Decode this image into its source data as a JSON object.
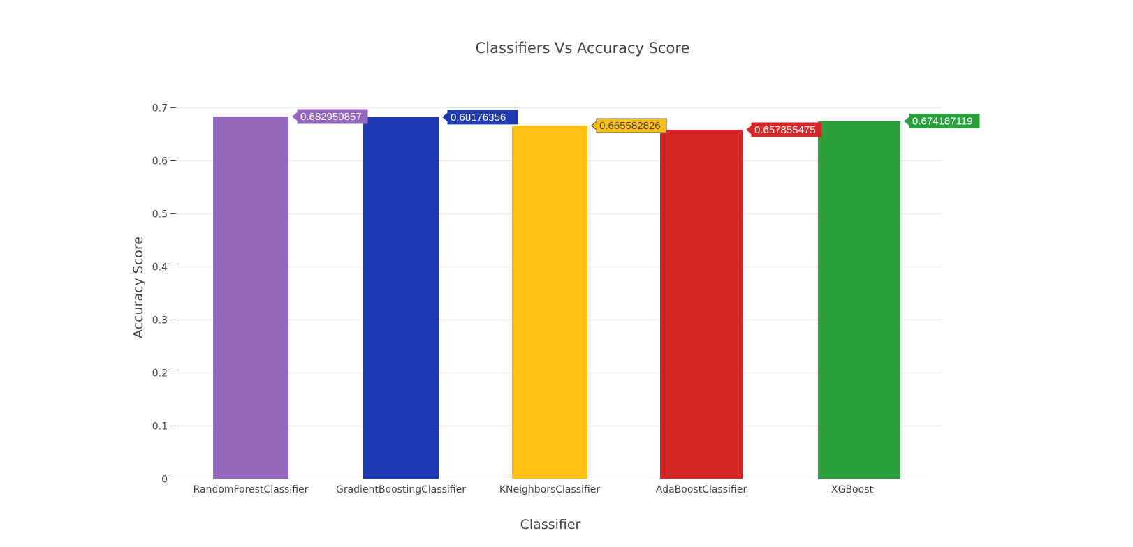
{
  "chart_data": {
    "type": "bar",
    "title": "Classifiers Vs Accuracy Score",
    "xlabel": "Classifier",
    "ylabel": "Accuracy Score",
    "categories": [
      "RandomForestClassifier",
      "GradientBoostingClassifier",
      "KNeighborsClassifier",
      "AdaBoostClassifier",
      "XGBoost"
    ],
    "values": [
      0.682950857,
      0.68176356,
      0.665582826,
      0.657855475,
      0.674187119
    ],
    "data_labels": [
      "0.682950857",
      "0.68176356",
      "0.665582826",
      "0.657855475",
      "0.674187119"
    ],
    "colors": [
      "#9467bd",
      "#1f3bb3",
      "#fdc010",
      "#d62728",
      "#2ca03c"
    ],
    "label_text_colors": [
      "#ffffff",
      "#ffffff",
      "#444444",
      "#ffffff",
      "#ffffff"
    ],
    "ylim": [
      0,
      0.7
    ],
    "yticks": [
      0,
      0.1,
      0.2,
      0.3,
      0.4,
      0.5,
      0.6,
      0.7
    ],
    "ytick_labels": [
      "0",
      "0.1",
      "0.2",
      "0.3",
      "0.4",
      "0.5",
      "0.6",
      "0.7"
    ],
    "grid": true,
    "legend": false
  }
}
